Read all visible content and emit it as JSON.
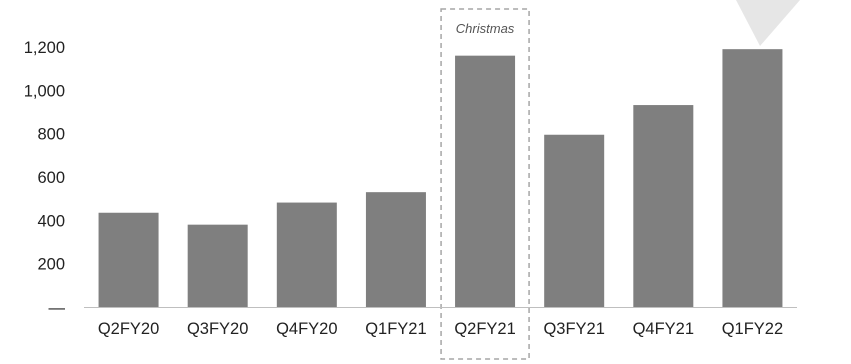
{
  "chart_data": {
    "type": "bar",
    "categories": [
      "Q2FY20",
      "Q3FY20",
      "Q4FY20",
      "Q1FY21",
      "Q2FY21",
      "Q3FY21",
      "Q4FY21",
      "Q1FY22"
    ],
    "values": [
      435,
      380,
      482,
      530,
      1160,
      795,
      932,
      1190
    ],
    "title": "",
    "xlabel": "",
    "ylabel": "",
    "ylim": [
      0,
      1200
    ],
    "y_ticks": [
      {
        "value": 0,
        "label": "—"
      },
      {
        "value": 200,
        "label": "200"
      },
      {
        "value": 400,
        "label": "400"
      },
      {
        "value": 600,
        "label": "600"
      },
      {
        "value": 800,
        "label": "800"
      },
      {
        "value": 1000,
        "label": "1,000"
      },
      {
        "value": 1200,
        "label": "1,200"
      }
    ],
    "grid": false,
    "legend": "none",
    "bar_color": "#7f7f7f",
    "axis_color": "#bfbfbf",
    "annotation": {
      "label": "Christmas",
      "category": "Q2FY21",
      "style": "dashed-box",
      "color": "#a6a6a6"
    }
  }
}
